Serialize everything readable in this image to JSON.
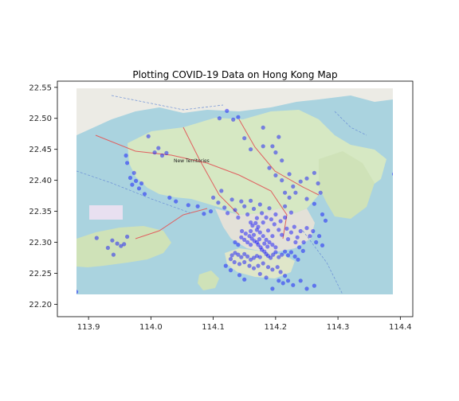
{
  "chart_data": {
    "type": "scatter",
    "title": "Plotting COVID-19 Data on Hong Kong Map",
    "xlabel": "",
    "ylabel": "",
    "xlim": [
      113.85,
      114.42
    ],
    "ylim": [
      22.18,
      22.56
    ],
    "xticks": [
      113.9,
      114.0,
      114.1,
      114.2,
      114.3,
      114.4
    ],
    "xtick_labels": [
      "113.9",
      "114.0",
      "114.1",
      "114.2",
      "114.3",
      "114.4"
    ],
    "yticks": [
      22.2,
      22.25,
      22.3,
      22.35,
      22.4,
      22.45,
      22.5,
      22.55
    ],
    "ytick_labels": [
      "22.20",
      "22.25",
      "22.30",
      "22.35",
      "22.40",
      "22.45",
      "22.50",
      "22.55"
    ],
    "map_extent": {
      "lon": [
        113.88,
        114.39
      ],
      "lat": [
        22.215,
        22.548
      ]
    },
    "map_label": "New Territories",
    "grid": false,
    "point_color": "#0000ff",
    "points": [
      [
        113.88,
        22.22
      ],
      [
        113.913,
        22.307
      ],
      [
        113.931,
        22.291
      ],
      [
        113.938,
        22.303
      ],
      [
        113.946,
        22.298
      ],
      [
        113.952,
        22.294
      ],
      [
        113.957,
        22.297
      ],
      [
        113.962,
        22.309
      ],
      [
        113.94,
        22.28
      ],
      [
        113.96,
        22.44
      ],
      [
        113.962,
        22.428
      ],
      [
        113.967,
        22.404
      ],
      [
        113.97,
        22.393
      ],
      [
        113.976,
        22.399
      ],
      [
        113.981,
        22.387
      ],
      [
        113.985,
        22.395
      ],
      [
        113.973,
        22.412
      ],
      [
        113.99,
        22.378
      ],
      [
        113.996,
        22.471
      ],
      [
        114.006,
        22.445
      ],
      [
        114.012,
        22.452
      ],
      [
        114.018,
        22.44
      ],
      [
        114.025,
        22.444
      ],
      [
        114.03,
        22.372
      ],
      [
        114.04,
        22.366
      ],
      [
        114.06,
        22.36
      ],
      [
        114.075,
        22.358
      ],
      [
        114.085,
        22.346
      ],
      [
        114.096,
        22.35
      ],
      [
        114.1,
        22.372
      ],
      [
        114.108,
        22.364
      ],
      [
        114.113,
        22.383
      ],
      [
        114.118,
        22.356
      ],
      [
        114.123,
        22.347
      ],
      [
        114.13,
        22.369
      ],
      [
        114.135,
        22.352
      ],
      [
        114.14,
        22.34
      ],
      [
        114.145,
        22.366
      ],
      [
        114.15,
        22.358
      ],
      [
        114.155,
        22.345
      ],
      [
        114.16,
        22.332
      ],
      [
        114.16,
        22.367
      ],
      [
        114.165,
        22.354
      ],
      [
        114.17,
        22.339
      ],
      [
        114.172,
        22.325
      ],
      [
        114.175,
        22.361
      ],
      [
        114.178,
        22.347
      ],
      [
        114.18,
        22.332
      ],
      [
        114.185,
        22.34
      ],
      [
        114.188,
        22.319
      ],
      [
        114.19,
        22.355
      ],
      [
        114.193,
        22.337
      ],
      [
        114.195,
        22.31
      ],
      [
        114.198,
        22.329
      ],
      [
        114.2,
        22.345
      ],
      [
        114.205,
        22.32
      ],
      [
        114.208,
        22.334
      ],
      [
        114.21,
        22.312
      ],
      [
        114.215,
        22.34
      ],
      [
        114.218,
        22.322
      ],
      [
        114.22,
        22.305
      ],
      [
        114.225,
        22.316
      ],
      [
        114.23,
        22.325
      ],
      [
        114.235,
        22.308
      ],
      [
        114.24,
        22.318
      ],
      [
        114.245,
        22.3
      ],
      [
        114.25,
        22.323
      ],
      [
        114.255,
        22.31
      ],
      [
        114.26,
        22.318
      ],
      [
        114.265,
        22.3
      ],
      [
        114.27,
        22.31
      ],
      [
        114.275,
        22.295
      ],
      [
        114.222,
        22.372
      ],
      [
        114.228,
        22.39
      ],
      [
        114.232,
        22.38
      ],
      [
        114.24,
        22.398
      ],
      [
        114.25,
        22.403
      ],
      [
        114.262,
        22.412
      ],
      [
        114.268,
        22.395
      ],
      [
        114.272,
        22.38
      ],
      [
        114.25,
        22.37
      ],
      [
        114.262,
        22.362
      ],
      [
        114.275,
        22.345
      ],
      [
        114.28,
        22.335
      ],
      [
        114.19,
        22.42
      ],
      [
        114.2,
        22.445
      ],
      [
        114.21,
        22.432
      ],
      [
        114.195,
        22.455
      ],
      [
        114.205,
        22.47
      ],
      [
        114.18,
        22.455
      ],
      [
        114.16,
        22.45
      ],
      [
        114.15,
        22.468
      ],
      [
        114.14,
        22.502
      ],
      [
        114.122,
        22.512
      ],
      [
        114.132,
        22.498
      ],
      [
        114.11,
        22.5
      ],
      [
        114.18,
        22.485
      ],
      [
        114.215,
        22.38
      ],
      [
        114.222,
        22.41
      ],
      [
        114.21,
        22.4
      ],
      [
        114.2,
        22.408
      ],
      [
        114.215,
        22.358
      ],
      [
        114.225,
        22.348
      ],
      [
        114.146,
        22.318
      ],
      [
        114.152,
        22.314
      ],
      [
        114.158,
        22.31
      ],
      [
        114.162,
        22.306
      ],
      [
        114.166,
        22.302
      ],
      [
        114.17,
        22.3
      ],
      [
        114.172,
        22.296
      ],
      [
        114.176,
        22.292
      ],
      [
        114.178,
        22.288
      ],
      [
        114.182,
        22.285
      ],
      [
        114.185,
        22.281
      ],
      [
        114.188,
        22.278
      ],
      [
        114.192,
        22.275
      ],
      [
        114.196,
        22.28
      ],
      [
        114.2,
        22.284
      ],
      [
        114.205,
        22.276
      ],
      [
        114.21,
        22.28
      ],
      [
        114.215,
        22.285
      ],
      [
        114.22,
        22.279
      ],
      [
        114.225,
        22.284
      ],
      [
        114.231,
        22.277
      ],
      [
        114.236,
        22.272
      ],
      [
        114.14,
        22.28
      ],
      [
        114.145,
        22.276
      ],
      [
        114.15,
        22.281
      ],
      [
        114.155,
        22.277
      ],
      [
        114.16,
        22.272
      ],
      [
        114.165,
        22.275
      ],
      [
        114.17,
        22.278
      ],
      [
        114.175,
        22.276
      ],
      [
        114.135,
        22.283
      ],
      [
        114.13,
        22.279
      ],
      [
        114.128,
        22.273
      ],
      [
        114.134,
        22.268
      ],
      [
        114.142,
        22.265
      ],
      [
        114.15,
        22.268
      ],
      [
        114.158,
        22.262
      ],
      [
        114.165,
        22.258
      ],
      [
        114.172,
        22.262
      ],
      [
        114.18,
        22.266
      ],
      [
        114.188,
        22.26
      ],
      [
        114.195,
        22.256
      ],
      [
        114.16,
        22.318
      ],
      [
        114.165,
        22.312
      ],
      [
        114.17,
        22.32
      ],
      [
        114.175,
        22.316
      ],
      [
        114.18,
        22.31
      ],
      [
        114.185,
        22.304
      ],
      [
        114.19,
        22.3
      ],
      [
        114.195,
        22.296
      ],
      [
        114.2,
        22.292
      ],
      [
        114.163,
        22.327
      ],
      [
        114.168,
        22.331
      ],
      [
        114.174,
        22.305
      ],
      [
        114.182,
        22.298
      ],
      [
        114.187,
        22.293
      ],
      [
        114.16,
        22.296
      ],
      [
        114.155,
        22.3
      ],
      [
        114.15,
        22.304
      ],
      [
        114.145,
        22.308
      ],
      [
        114.14,
        22.296
      ],
      [
        114.135,
        22.3
      ],
      [
        114.203,
        22.26
      ],
      [
        114.208,
        22.252
      ],
      [
        114.215,
        22.246
      ],
      [
        114.205,
        22.238
      ],
      [
        114.212,
        22.234
      ],
      [
        114.22,
        22.238
      ],
      [
        114.228,
        22.231
      ],
      [
        114.195,
        22.225
      ],
      [
        114.185,
        22.243
      ],
      [
        114.175,
        22.249
      ],
      [
        114.24,
        22.238
      ],
      [
        114.25,
        22.225
      ],
      [
        114.262,
        22.23
      ],
      [
        114.15,
        22.24
      ],
      [
        114.142,
        22.247
      ],
      [
        114.128,
        22.255
      ],
      [
        114.12,
        22.262
      ],
      [
        114.232,
        22.3
      ],
      [
        114.238,
        22.292
      ],
      [
        114.244,
        22.286
      ],
      [
        114.39,
        22.41
      ]
    ]
  }
}
